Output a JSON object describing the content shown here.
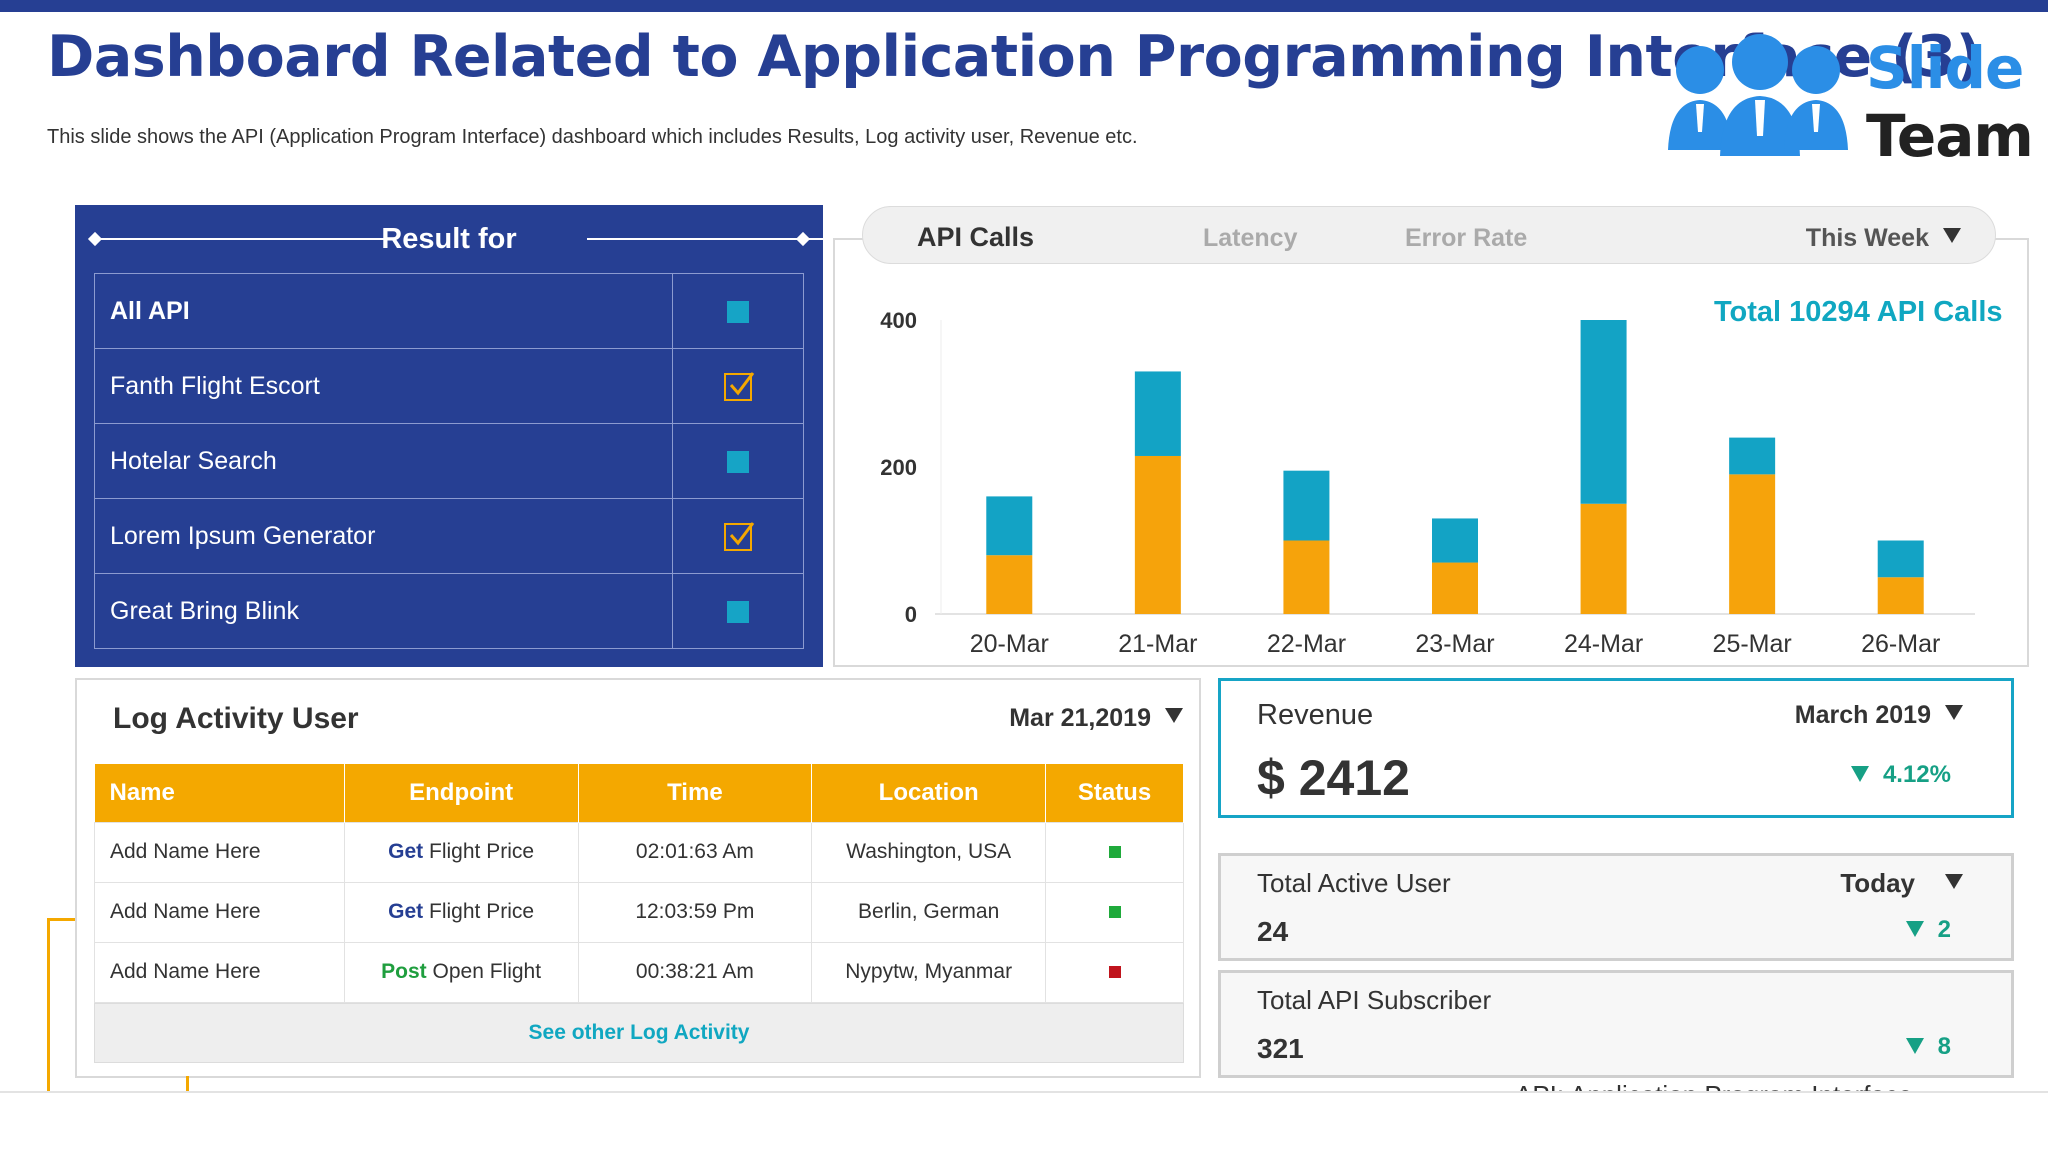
{
  "header": {
    "title": "Dashboard Related to Application Programming Interface (3)",
    "subtitle": "This slide shows the API (Application Program Interface) dashboard which includes Results, Log activity user, Revenue etc."
  },
  "logo": {
    "line1": "Slide",
    "line2": "Team"
  },
  "result_panel": {
    "title": "Result for",
    "items": [
      {
        "label": "All API",
        "state": "square",
        "bold": true
      },
      {
        "label": "Fanth Flight Escort",
        "state": "checked"
      },
      {
        "label": "Hotelar Search",
        "state": "square"
      },
      {
        "label": "Lorem Ipsum Generator",
        "state": "checked"
      },
      {
        "label": "Great Bring Blink",
        "state": "square"
      }
    ]
  },
  "api_panel": {
    "tabs": {
      "active": "API Calls",
      "latency": "Latency",
      "error_rate": "Error Rate"
    },
    "period": "This Week",
    "total_label": "Total 10294 API Calls"
  },
  "chart_data": {
    "type": "bar",
    "stacked": true,
    "categories": [
      "20-Mar",
      "21-Mar",
      "22-Mar",
      "23-Mar",
      "24-Mar",
      "25-Mar",
      "26-Mar"
    ],
    "series": [
      {
        "color": "#f6a30b",
        "values": [
          80,
          215,
          100,
          70,
          150,
          190,
          50
        ]
      },
      {
        "color": "#13a3c5",
        "values": [
          80,
          115,
          95,
          60,
          250,
          50,
          50
        ]
      }
    ],
    "yticks": [
      0,
      200,
      400
    ],
    "ylim": [
      0,
      400
    ],
    "grid": false
  },
  "log_activity": {
    "title": "Log Activity User",
    "date": "Mar 21,2019",
    "columns": [
      "Name",
      "Endpoint",
      "Time",
      "Location",
      "Status"
    ],
    "rows": [
      {
        "name": "Add Name Here",
        "verb": "Get",
        "endpoint": "Flight Price",
        "time": "02:01:63 Am",
        "location": "Washington, USA",
        "status_color": "#1faa3b"
      },
      {
        "name": "Add Name Here",
        "verb": "Get",
        "endpoint": "Flight Price",
        "time": "12:03:59 Pm",
        "location": "Berlin, German",
        "status_color": "#1faa3b"
      },
      {
        "name": "Add Name Here",
        "verb": "Post",
        "endpoint": "Open Flight",
        "time": "00:38:21 Am",
        "location": "Nypytw, Myanmar",
        "status_color": "#c0141d"
      }
    ],
    "footer_link": "See other Log Activity"
  },
  "revenue": {
    "title": "Revenue",
    "period": "March 2019",
    "value": "$ 2412",
    "change": "4.12%"
  },
  "active_user": {
    "title": "Total Active User",
    "period": "Today",
    "value": "24",
    "change": "2"
  },
  "subscriber": {
    "title": "Total API Subscriber",
    "value": "321",
    "change": "8"
  },
  "footnote": "API: Application Program Interface"
}
